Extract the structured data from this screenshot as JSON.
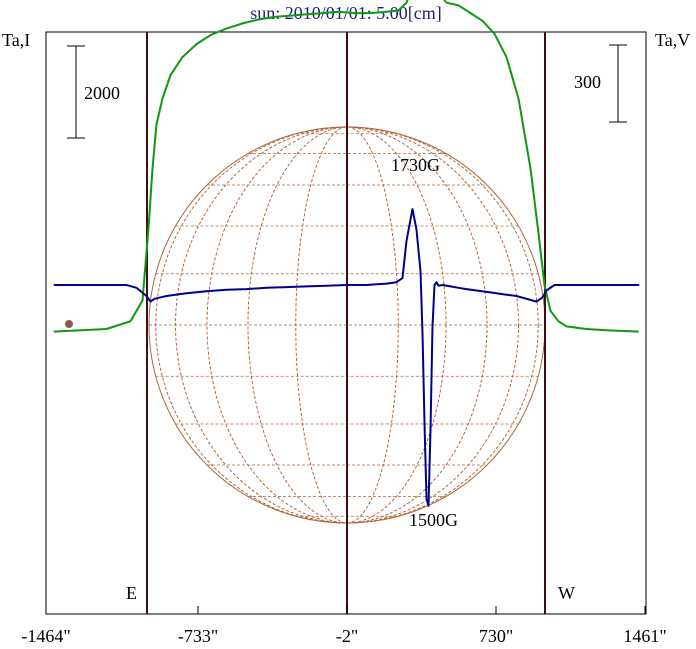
{
  "chart_data": {
    "type": "line",
    "title": "sun: 2010/01/01: 5.00[cm]",
    "left_axis_label": "Ta,I",
    "right_axis_label": "Ta,V",
    "left_scale_bar_label": "2000",
    "right_scale_bar_label": "300",
    "x_tick_labels": [
      "-1464\"",
      "-733\"",
      "-2\"",
      "730\"",
      "1461\""
    ],
    "x_tick_values": [
      -1464,
      -733,
      -2,
      730,
      1461
    ],
    "xlim": [
      -1464,
      1461
    ],
    "limb_labels": {
      "east": "E",
      "west": "W"
    },
    "annotations": [
      "1730G",
      "1500G"
    ],
    "colors": {
      "intensity": "#109810",
      "polarization": "#00008b",
      "disk": "#b0663a",
      "limb_lines": "#3a1010",
      "title": "#1f1f7a"
    },
    "series": [
      {
        "key": "intensity",
        "x": [
          -1464,
          -1200,
          -1080,
          -1020,
          -990,
          -970,
          -950,
          -920,
          -880,
          -820,
          -750,
          -680,
          -600,
          -520,
          -440,
          -360,
          -280,
          -200,
          -120,
          -40,
          40,
          120,
          200,
          260,
          300,
          330,
          350,
          370,
          390,
          410,
          420,
          430,
          440,
          460,
          500,
          560,
          620,
          680,
          740,
          800,
          860,
          920,
          960,
          990,
          1020,
          1060,
          1100,
          1200,
          1300,
          1461
        ],
        "y": [
          -0.18,
          -0.17,
          -0.14,
          -0.06,
          0.22,
          0.45,
          0.62,
          0.72,
          0.81,
          0.88,
          0.93,
          0.965,
          0.99,
          1.01,
          1.025,
          1.035,
          1.04,
          1.045,
          1.05,
          1.055,
          1.05,
          1.05,
          1.055,
          1.06,
          1.09,
          1.15,
          1.33,
          1.5,
          1.65,
          1.59,
          1.52,
          1.46,
          1.25,
          1.13,
          1.09,
          1.08,
          1.05,
          1.02,
          0.97,
          0.88,
          0.72,
          0.45,
          0.2,
          0.0,
          -0.1,
          -0.14,
          -0.16,
          -0.17,
          -0.175,
          -0.18
        ]
      },
      {
        "key": "polarization",
        "x": [
          -1464,
          -1100,
          -1050,
          -1000,
          -980,
          -960,
          -900,
          -800,
          -700,
          -600,
          -500,
          -400,
          -300,
          -200,
          -100,
          0,
          100,
          200,
          250,
          280,
          300,
          330,
          350,
          370,
          380,
          390,
          400,
          410,
          420,
          430,
          440,
          450,
          460,
          480,
          520,
          560,
          600,
          650,
          700,
          750,
          800,
          850,
          900,
          950,
          980,
          1000,
          1040,
          1100,
          1200,
          1464
        ],
        "y": [
          0,
          0,
          -0.02,
          -0.08,
          -0.12,
          -0.1,
          -0.08,
          -0.06,
          -0.045,
          -0.035,
          -0.03,
          -0.02,
          -0.015,
          -0.01,
          -0.005,
          0.0,
          0.0,
          0.01,
          0.02,
          0.05,
          0.32,
          0.55,
          0.4,
          0.1,
          -0.35,
          -1.0,
          -1.55,
          -1.6,
          -1.05,
          -0.3,
          0.0,
          0.02,
          -0.005,
          0.0,
          -0.01,
          -0.02,
          -0.03,
          -0.04,
          -0.05,
          -0.06,
          -0.07,
          -0.08,
          -0.1,
          -0.12,
          -0.09,
          -0.04,
          0.0,
          0.0,
          0.0,
          0.0
        ]
      }
    ]
  }
}
